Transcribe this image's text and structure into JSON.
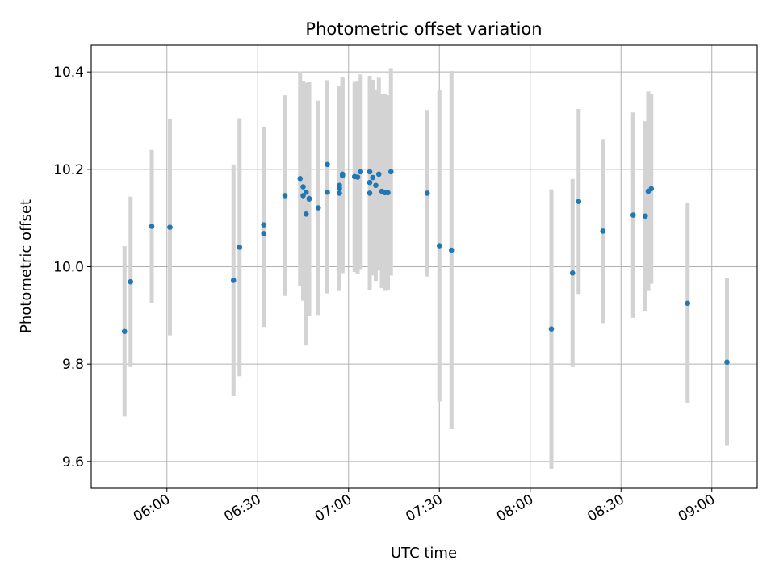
{
  "chart_data": {
    "type": "scatter",
    "title": "Photometric offset variation",
    "xlabel": "UTC time",
    "ylabel": "Photometric offset",
    "x_ticks": [
      "06:00",
      "06:30",
      "07:00",
      "07:30",
      "08:00",
      "08:30",
      "09:00"
    ],
    "y_ticks": [
      "9.6",
      "9.8",
      "10.0",
      "10.2",
      "10.4"
    ],
    "xlim": [
      "05:35",
      "09:15"
    ],
    "ylim": [
      9.545,
      10.455
    ],
    "grid": true,
    "errorbar_color": "#d3d3d3",
    "point_color": "#1f77b4",
    "series": [
      {
        "x": [
          "05:46",
          "05:48",
          "05:55",
          "06:01",
          "06:22",
          "06:24",
          "06:32",
          "06:32",
          "06:39",
          "06:44",
          "06:45",
          "06:45",
          "06:46",
          "06:46",
          "06:47",
          "06:47",
          "06:50",
          "06:53",
          "06:53",
          "06:57",
          "06:57",
          "06:57",
          "06:58",
          "06:58",
          "07:02",
          "07:03",
          "07:04",
          "07:07",
          "07:07",
          "07:07",
          "07:08",
          "07:09",
          "07:10",
          "07:11",
          "07:12",
          "07:13",
          "07:14",
          "07:26",
          "07:30",
          "07:34",
          "08:07",
          "08:14",
          "08:16",
          "08:24",
          "08:34",
          "08:38",
          "08:39",
          "08:40",
          "08:52",
          "09:05"
        ],
        "y": [
          9.867,
          9.969,
          10.083,
          10.081,
          9.972,
          10.04,
          10.068,
          10.086,
          10.146,
          10.181,
          10.164,
          10.146,
          10.153,
          10.108,
          10.14,
          10.139,
          10.121,
          10.21,
          10.153,
          10.167,
          10.151,
          10.161,
          10.19,
          10.187,
          10.185,
          10.184,
          10.195,
          10.151,
          10.195,
          10.173,
          10.183,
          10.167,
          10.19,
          10.155,
          10.152,
          10.152,
          10.195,
          10.151,
          10.043,
          10.034,
          9.872,
          9.987,
          10.134,
          10.073,
          10.106,
          10.104,
          10.155,
          10.16,
          9.925,
          9.804
        ],
        "yerr": [
          0.175,
          0.175,
          0.157,
          0.222,
          0.238,
          0.265,
          0.192,
          0.2,
          0.206,
          0.22,
          0.218,
          0.216,
          0.22,
          0.27,
          0.24,
          0.24,
          0.22,
          0.173,
          0.208,
          0.2,
          0.195,
          0.211,
          0.2,
          0.2,
          0.196,
          0.198,
          0.2,
          0.2,
          0.197,
          0.199,
          0.201,
          0.196,
          0.198,
          0.199,
          0.202,
          0.2,
          0.213,
          0.171,
          0.32,
          0.368,
          0.287,
          0.193,
          0.19,
          0.189,
          0.211,
          0.195,
          0.205,
          0.195,
          0.206,
          0.172
        ]
      }
    ]
  }
}
